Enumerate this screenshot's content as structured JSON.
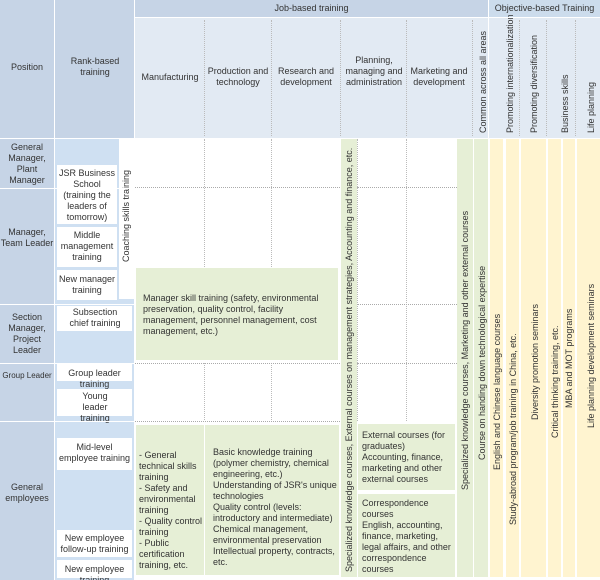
{
  "header": {
    "job_based": "Job-based training",
    "objective_based": "Objective-based Training",
    "position": "Position",
    "rank_based": "Rank-based training",
    "manufacturing": "Manufacturing",
    "production": "Production and technology",
    "research": "Research and development",
    "planning": "Planning, managing and administration",
    "marketing": "Marketing and development",
    "common": "Common across all areas",
    "internationalization": "Promoting internationalization",
    "diversification": "Promoting diversification",
    "business_skills": "Business skills",
    "life_planning": "Life planning"
  },
  "positions": {
    "gm": "General Manager, Plant Manager",
    "manager": "Manager, Team Leader",
    "section": "Section Manager, Project Leader",
    "group_leader": "Group Leader",
    "general": "General employees"
  },
  "rank": {
    "jsr_school": "JSR Business School (training the leaders of tomorrow)",
    "middle_mgmt": "Middle management training",
    "new_manager": "New manager training",
    "coaching": "Coaching skills training",
    "subsection": "Subsection chief training",
    "group_leader": "Group leader training",
    "young_leader": "Young leader training",
    "mid_level": "Mid-level employee training",
    "followup": "New employee follow-up training",
    "new_employee": "New employee training"
  },
  "body": {
    "manager_skill": "Manager skill training (safety, environmental preservation, quality control, facility management, personnel management, cost management, etc.)",
    "general_technical": "- General technical skills training\n- Safety and environmental training\n- Quality control training\n- Public certification training, etc.",
    "basic_knowledge": "Basic knowledge training (polymer chemistry, chemical engineering, etc.)\nUnderstanding of JSR's unique technologies\nQuality control (levels: introductory and intermediate)\nChemical management, environmental preservation\nIntellectual property, contracts, etc.",
    "planning_ext": "Specialized knowledge courses, External courses on management strategies, Accounting and finance, etc.",
    "external_courses": "External courses (for graduates)\nAccounting, finance, marketing and other external courses",
    "correspondence": "Correspondence courses\nEnglish, accounting, finance, marketing, legal affairs, and other correspondence courses",
    "marketing_ext": "Specialized knowledge courses, Marketing and other external courses",
    "tech_expertise": "Course on handing down technological expertise",
    "lang": "English and Chinese language courses",
    "study_abroad": "Study-abroad program/job training in China, etc.",
    "diversity": "Diversity promotion seminars",
    "critical": "Critical thinking training, etc.",
    "mba": "MBA and MOT programs",
    "life_seminars": "Life planning development seminars"
  }
}
